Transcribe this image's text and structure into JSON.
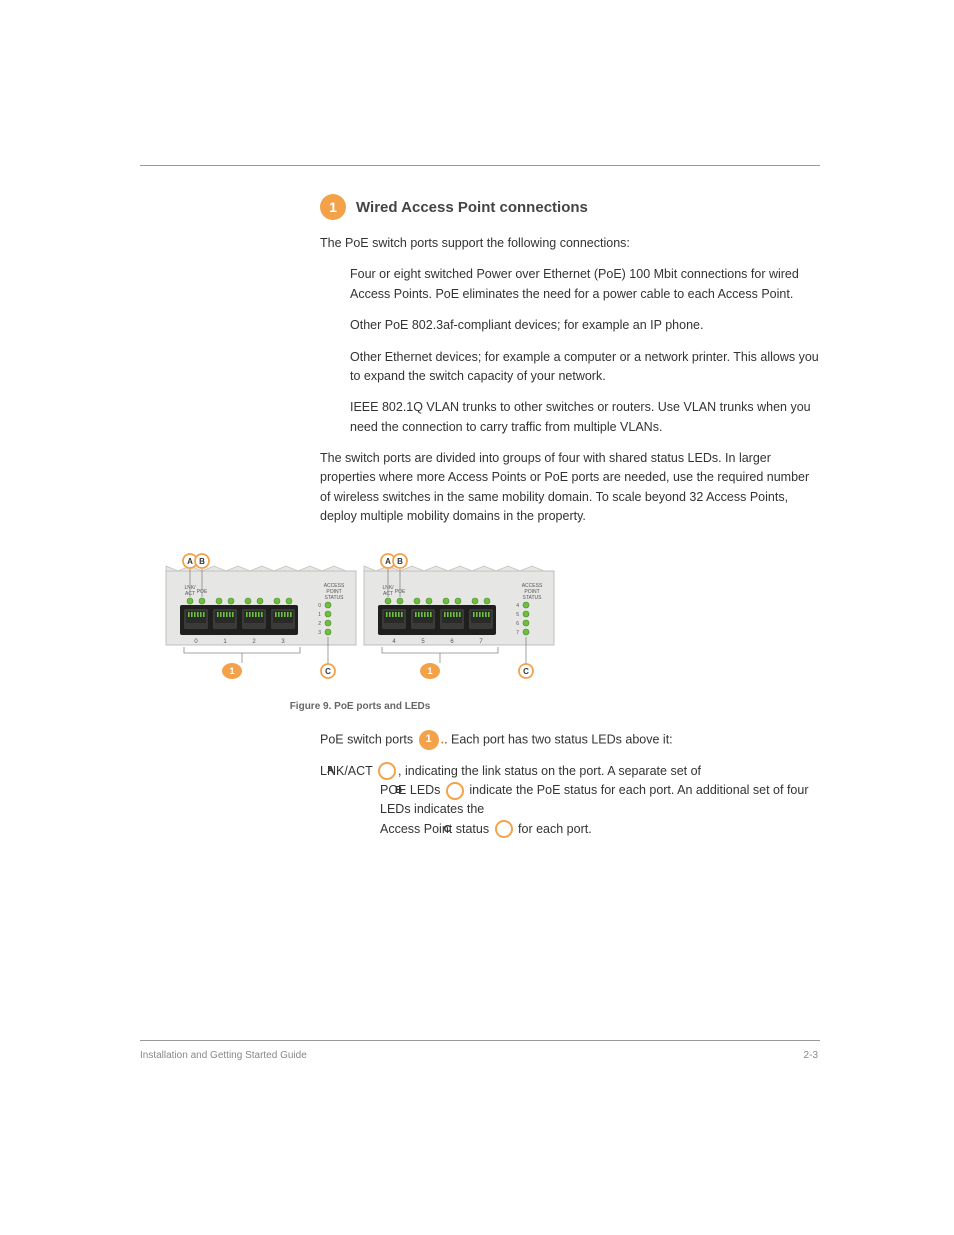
{
  "section": {
    "number": "1",
    "heading": "Wired Access Point connections",
    "intro": "The PoE switch ports support the following connections:",
    "details": [
      "Four or eight switched Power over Ethernet (PoE) 100 Mbit connections for wired Access Points. PoE eliminates the need for a power cable to each Access Point.",
      "Other PoE 802.3af-compliant devices; for example an IP phone.",
      "Other Ethernet devices; for example a computer or a network printer. This allows you to expand the switch capacity of your network.",
      "IEEE 802.1Q VLAN trunks to other switches or routers. Use VLAN trunks when you need the connection to carry traffic from multiple VLANs."
    ],
    "scaling_note": "The switch ports are divided into groups of four with shared status LEDs. In larger properties where more Access Points or PoE ports are needed, use the required number of wireless switches in the same mobility domain. To scale beyond 32 Access Points, deploy multiple mobility domains in the property."
  },
  "figure": {
    "caption": "Figure 9. PoE ports and LEDs",
    "labels": {
      "A": "A",
      "B": "B",
      "C": "C",
      "group": "1"
    },
    "port_text": {
      "lnk_act": "LNK/\nACT",
      "poe": "POE",
      "access_point_status": "ACCESS\nPOINT\nSTATUS"
    },
    "port_numbers_left": [
      "0",
      "1",
      "2",
      "3"
    ],
    "port_numbers_right": [
      "4",
      "5",
      "6",
      "7"
    ],
    "status_leds_left": [
      "0",
      "1",
      "2",
      "3"
    ],
    "status_leds_right": [
      "4",
      "5",
      "6",
      "7"
    ],
    "colors": {
      "badge_fill": "#f4a24a",
      "badge_text": "#ffffff",
      "ring_stroke": "#f4a24a",
      "panel_bg": "#e6e6e4",
      "panel_stroke": "#bfbfbd",
      "port_dark": "#3a3a38",
      "port_shadow": "#2a2a28",
      "led_green": "#6fbf3e",
      "led_green_dark": "#4a8a2a",
      "label_text": "#555555",
      "leader_line": "#888888"
    }
  },
  "legend": {
    "intro_prefix": "PoE switch ports ",
    "intro_suffix": ". Each port has two status LEDs above it:",
    "led_a_prefix": "LNK/ACT ",
    "led_a_suffix": ", indicating the link status on the port. A separate set of ",
    "led_b_prefix": "POE LEDs ",
    "led_b_suffix": " indicate the PoE status for each port. An additional set of four LEDs indicates the",
    "led_c_prefix": "Access Point status ",
    "led_c_suffix": " for each port."
  },
  "footer": {
    "left": "Installation and Getting Started Guide",
    "right": "2-3"
  }
}
